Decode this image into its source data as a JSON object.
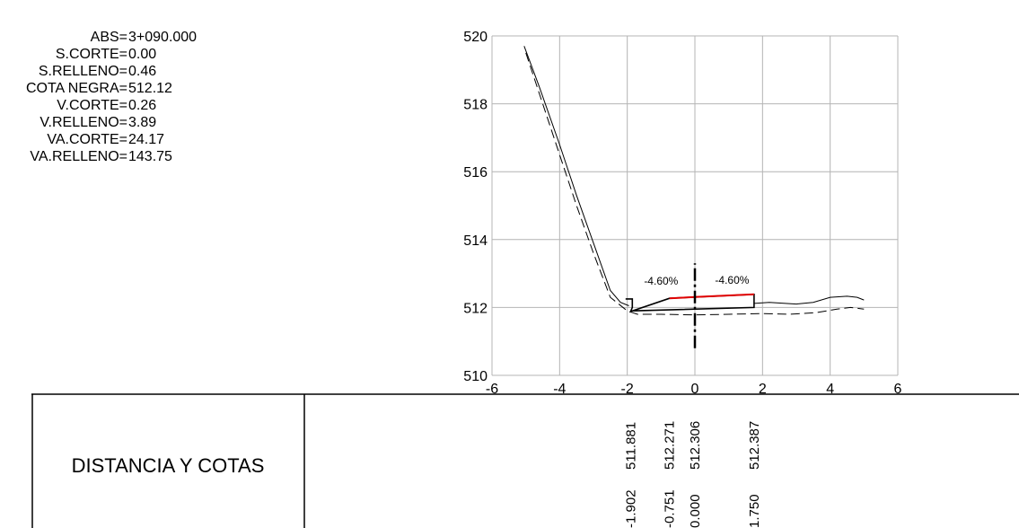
{
  "header": {
    "fields": [
      {
        "label": "ABS=",
        "value": "3+090.000"
      },
      {
        "label": "S.CORTE=",
        "value": "0.00"
      },
      {
        "label": "S.RELLENO=",
        "value": "0.46"
      },
      {
        "label": "COTA NEGRA=",
        "value": "512.12"
      },
      {
        "label": "V.CORTE=",
        "value": "0.26"
      },
      {
        "label": "V.RELLENO=",
        "value": "3.89"
      },
      {
        "label": "VA.CORTE=",
        "value": "24.17"
      },
      {
        "label": "VA.RELLENO=",
        "value": "143.75"
      }
    ]
  },
  "table": {
    "title": "DISTANCIA Y COTAS",
    "columns": [
      {
        "offset": "-1.902",
        "elevation": "511.881"
      },
      {
        "offset": "-0.751",
        "elevation": "512.271"
      },
      {
        "offset": "0.000",
        "elevation": "512.306"
      },
      {
        "offset": "1.750",
        "elevation": "512.387"
      }
    ]
  },
  "chart_data": {
    "type": "line",
    "xlim": [
      -6,
      6
    ],
    "ylim": [
      510,
      520
    ],
    "x_ticks": [
      "-6",
      "-4",
      "-2",
      "0",
      "2",
      "4",
      "6"
    ],
    "y_ticks": [
      "520",
      "518",
      "516",
      "514",
      "512",
      "510"
    ],
    "grid": true,
    "annotations": [
      {
        "text": "-4.60%",
        "x": -1.0,
        "y": 512.3
      },
      {
        "text": "-4.60%",
        "x": 1.1,
        "y": 512.33
      }
    ],
    "series": [
      {
        "style": "solid",
        "x": [
          -5.05,
          -4.6,
          -4.0,
          -3.5,
          -3.0,
          -2.5,
          -2.2,
          -1.95
        ],
        "y": [
          519.7,
          518.5,
          516.8,
          515.3,
          513.9,
          512.5,
          512.15,
          512.05
        ]
      },
      {
        "style": "dashed",
        "x": [
          -5.0,
          -4.5,
          -4.0,
          -3.5,
          -3.0,
          -2.5,
          -2.0,
          -1.7,
          -1.0,
          0.0,
          1.0,
          2.0,
          2.8,
          3.6,
          4.2,
          4.6,
          5.0
        ],
        "y": [
          519.5,
          518.0,
          516.5,
          515.0,
          513.6,
          512.3,
          511.9,
          511.8,
          511.8,
          511.78,
          511.8,
          511.82,
          511.8,
          511.85,
          511.95,
          512.0,
          511.95
        ]
      },
      {
        "style": "solid",
        "x": [
          1.75,
          2.2,
          3.0,
          3.5,
          4.0,
          4.5,
          4.8,
          5.0
        ],
        "y": [
          512.12,
          512.15,
          512.1,
          512.15,
          512.3,
          512.33,
          512.3,
          512.22
        ]
      },
      {
        "style": "solid",
        "x": [
          -2.05,
          -1.85,
          -1.85,
          -1.902,
          -0.751,
          0.0,
          1.75,
          1.75,
          -1.85
        ],
        "y": [
          512.25,
          512.25,
          512.0,
          511.881,
          512.271,
          512.306,
          512.387,
          512.0,
          511.9
        ]
      },
      {
        "style": "red",
        "x": [
          -0.751,
          0.0,
          1.75
        ],
        "y": [
          512.271,
          512.306,
          512.387
        ]
      },
      {
        "style": "centerline",
        "x": [
          0.0,
          0.0
        ],
        "y": [
          510.8,
          513.3
        ]
      }
    ]
  }
}
